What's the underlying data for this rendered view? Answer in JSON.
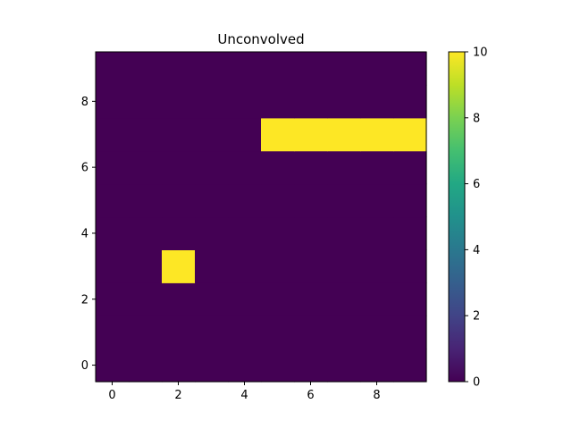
{
  "chart_data": {
    "type": "heatmap",
    "title": "Unconvolved",
    "xlabel": "",
    "ylabel": "",
    "xlim": [
      -0.5,
      9.5
    ],
    "ylim": [
      -0.5,
      9.5
    ],
    "origin": "lower",
    "grid": false,
    "xticks": [
      0,
      2,
      4,
      6,
      8
    ],
    "yticks": [
      0,
      2,
      4,
      6,
      8
    ],
    "colormap": "viridis",
    "vmin": 0,
    "vmax": 10,
    "colorbar": {
      "ticks": [
        0,
        2,
        4,
        6,
        8,
        10
      ],
      "colors": [
        "#440154",
        "#482475",
        "#414487",
        "#355f8d",
        "#2a788e",
        "#21918c",
        "#22a884",
        "#44bf70",
        "#7ad151",
        "#bddf26",
        "#fde725"
      ]
    },
    "values": [
      [
        0,
        0,
        0,
        0,
        0,
        0,
        0,
        0,
        0,
        0
      ],
      [
        0,
        0,
        0,
        0,
        0,
        0,
        0,
        0,
        0,
        0
      ],
      [
        0,
        0,
        0,
        0,
        0,
        0,
        0,
        0,
        0,
        0
      ],
      [
        0,
        0,
        10,
        0,
        0,
        0,
        0,
        0,
        0,
        0
      ],
      [
        0,
        0,
        0,
        0,
        0,
        0,
        0,
        0,
        0,
        0
      ],
      [
        0,
        0,
        0,
        0,
        0,
        0,
        0,
        0,
        0,
        0
      ],
      [
        0,
        0,
        0,
        0,
        0,
        0,
        0,
        0,
        0,
        0
      ],
      [
        0,
        0,
        0,
        0,
        0,
        10,
        10,
        10,
        10,
        10
      ],
      [
        0,
        0,
        0,
        0,
        0,
        0,
        0,
        0,
        0,
        0
      ],
      [
        0,
        0,
        0,
        0,
        0,
        0,
        0,
        0,
        0,
        0
      ]
    ]
  }
}
